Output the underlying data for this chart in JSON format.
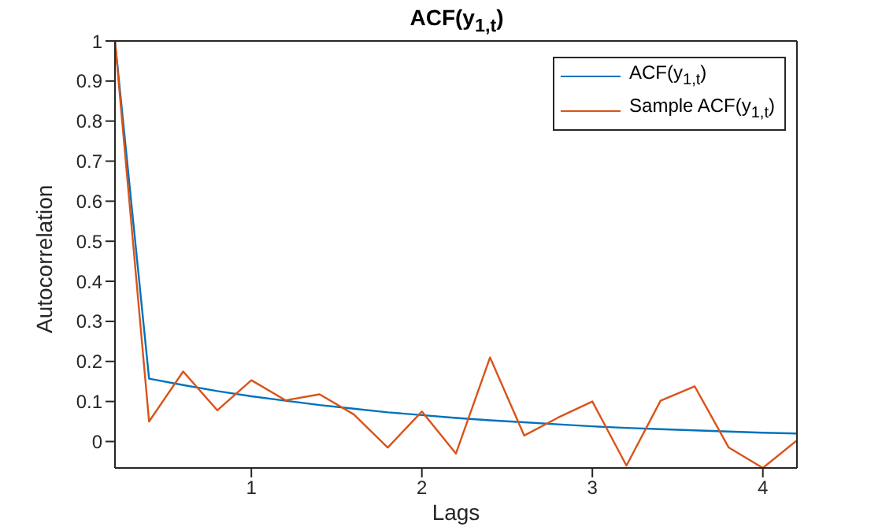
{
  "chart_data": {
    "type": "line",
    "title": "ACF(y$_{1,t}$)",
    "xlabel": "Lags",
    "ylabel": "Autocorrelation",
    "x": [
      0.2,
      0.4,
      0.6,
      0.8,
      1.0,
      1.2,
      1.4,
      1.6,
      1.8,
      2.0,
      2.2,
      2.4,
      2.6,
      2.8,
      3.0,
      3.2,
      3.4,
      3.6,
      3.8,
      4.0,
      4.2
    ],
    "series": [
      {
        "name": "ACF(y$_{1,t}$)",
        "color": "#0072bd",
        "values": [
          1,
          0.157,
          0.141,
          0.126,
          0.113,
          0.102,
          0.091,
          0.082,
          0.073,
          0.066,
          0.059,
          0.053,
          0.048,
          0.043,
          0.038,
          0.034,
          0.031,
          0.028,
          0.025,
          0.022,
          0.02
        ]
      },
      {
        "name": "Sample ACF(y$_{1,t}$)",
        "color": "#d95319",
        "values": [
          1,
          0.05,
          0.175,
          0.078,
          0.153,
          0.103,
          0.118,
          0.068,
          -0.015,
          0.075,
          -0.03,
          0.21,
          0.015,
          0.06,
          0.1,
          -0.06,
          0.102,
          0.138,
          -0.015,
          -0.066,
          0.003
        ]
      }
    ],
    "xlim": [
      0.2,
      4.2
    ],
    "ylim": [
      -0.066,
      1
    ],
    "xticks": [
      1,
      2,
      3,
      4
    ],
    "yticks": [
      0,
      0.1,
      0.2,
      0.3,
      0.4,
      0.5,
      0.6,
      0.7,
      0.8,
      0.9,
      1
    ],
    "legend": "top right"
  }
}
